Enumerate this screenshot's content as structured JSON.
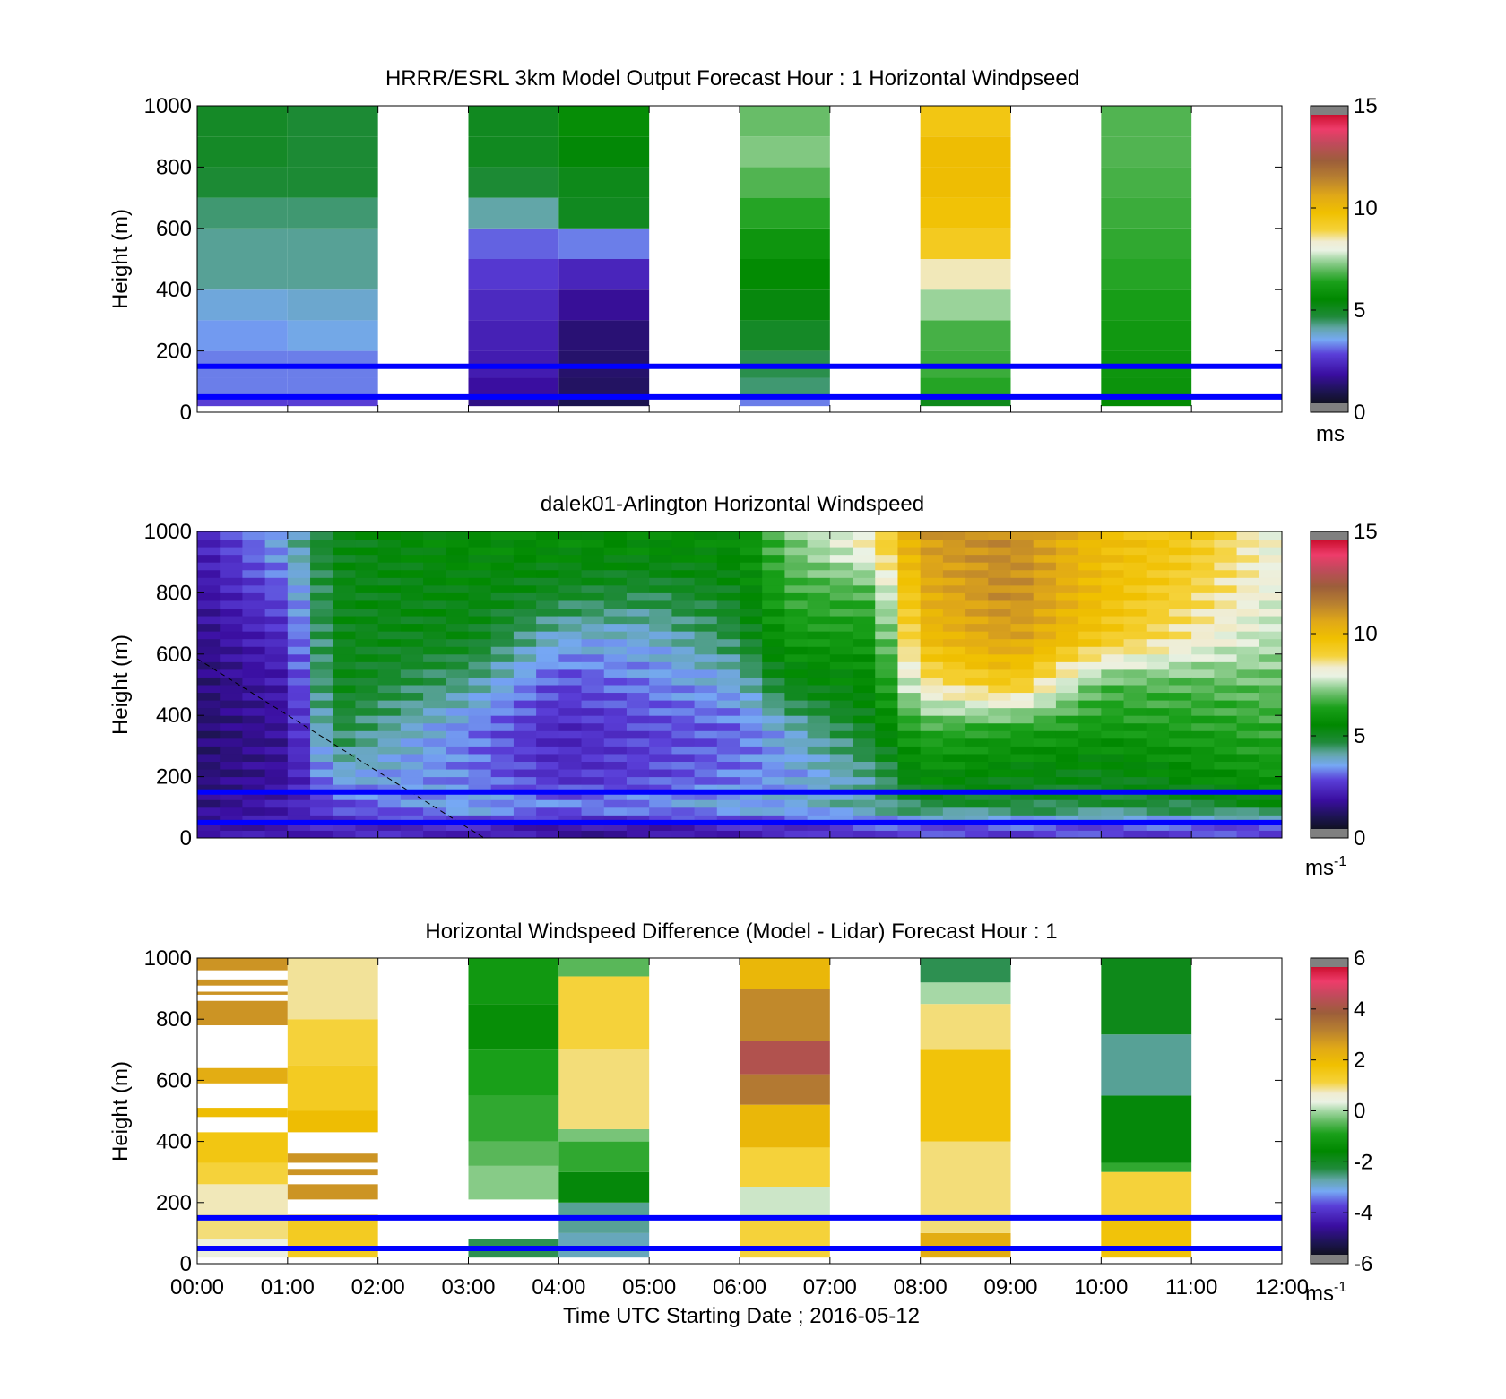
{
  "figure": {
    "xlabel": "Time UTC  Starting Date ; 2016-05-12",
    "x_tick_labels": [
      "00:00",
      "01:00",
      "02:00",
      "03:00",
      "04:00",
      "05:00",
      "06:00",
      "07:00",
      "08:00",
      "09:00",
      "10:00",
      "11:00",
      "12:00"
    ],
    "reference_line_color": "#0000ff",
    "reference_heights_m": [
      50,
      150
    ]
  },
  "chart_data": [
    {
      "type": "heatmap",
      "title": "HRRR/ESRL 3km Model Output   Forecast Hour : 1 Horizontal Windpseed",
      "xlabel": "",
      "ylabel": "Height (m)",
      "xlim": [
        0,
        12
      ],
      "ylim": [
        0,
        1000
      ],
      "y_ticks": [
        0,
        200,
        400,
        600,
        800,
        1000
      ],
      "colorbar": {
        "range": [
          0,
          15
        ],
        "ticks": [
          0,
          5,
          10,
          15
        ],
        "unit": "ms"
      },
      "columns": [
        {
          "t0": 0,
          "t1": 1,
          "levels": [
            [
              25,
              2.5
            ],
            [
              75,
              3.0
            ],
            [
              150,
              3.0
            ],
            [
              250,
              3.2
            ],
            [
              350,
              3.5
            ],
            [
              450,
              4.0
            ],
            [
              550,
              4.0
            ],
            [
              650,
              4.2
            ],
            [
              750,
              4.6
            ],
            [
              850,
              4.8
            ],
            [
              950,
              4.8
            ]
          ]
        },
        {
          "t0": 1,
          "t1": 2,
          "levels": [
            [
              25,
              2.5
            ],
            [
              75,
              3.0
            ],
            [
              150,
              3.0
            ],
            [
              250,
              3.4
            ],
            [
              350,
              3.6
            ],
            [
              450,
              4.0
            ],
            [
              550,
              4.0
            ],
            [
              650,
              4.2
            ],
            [
              750,
              4.6
            ],
            [
              850,
              4.6
            ],
            [
              950,
              4.6
            ]
          ]
        },
        {
          "t0": 3,
          "t1": 4,
          "levels": [
            [
              25,
              1.2
            ],
            [
              75,
              1.5
            ],
            [
              150,
              1.8
            ],
            [
              250,
              1.9
            ],
            [
              350,
              2.1
            ],
            [
              450,
              2.4
            ],
            [
              550,
              2.8
            ],
            [
              650,
              3.9
            ],
            [
              750,
              4.6
            ],
            [
              850,
              4.9
            ],
            [
              950,
              4.9
            ]
          ]
        },
        {
          "t0": 4,
          "t1": 5,
          "levels": [
            [
              25,
              0.6
            ],
            [
              75,
              0.8
            ],
            [
              150,
              0.9
            ],
            [
              250,
              1.0
            ],
            [
              350,
              1.4
            ],
            [
              450,
              2.0
            ],
            [
              550,
              3.0
            ],
            [
              650,
              4.9
            ],
            [
              750,
              5.0
            ],
            [
              850,
              5.3
            ],
            [
              950,
              5.6
            ]
          ]
        },
        {
          "t0": 6,
          "t1": 7,
          "levels": [
            [
              25,
              3.0
            ],
            [
              75,
              4.2
            ],
            [
              150,
              4.4
            ],
            [
              250,
              4.8
            ],
            [
              350,
              5.2
            ],
            [
              450,
              5.5
            ],
            [
              550,
              5.9
            ],
            [
              650,
              6.4
            ],
            [
              750,
              6.8
            ],
            [
              850,
              7.2
            ],
            [
              950,
              7.0
            ]
          ]
        },
        {
          "t0": 8,
          "t1": 9,
          "levels": [
            [
              25,
              5.0
            ],
            [
              75,
              6.4
            ],
            [
              150,
              6.6
            ],
            [
              250,
              6.7
            ],
            [
              350,
              7.4
            ],
            [
              450,
              8.5
            ],
            [
              550,
              9.4
            ],
            [
              650,
              9.8
            ],
            [
              750,
              10.0
            ],
            [
              850,
              10.0
            ],
            [
              950,
              9.6
            ]
          ]
        },
        {
          "t0": 10,
          "t1": 11,
          "levels": [
            [
              25,
              5.5
            ],
            [
              75,
              5.8
            ],
            [
              150,
              5.9
            ],
            [
              250,
              6.0
            ],
            [
              350,
              6.2
            ],
            [
              450,
              6.4
            ],
            [
              550,
              6.5
            ],
            [
              650,
              6.6
            ],
            [
              750,
              6.7
            ],
            [
              850,
              6.8
            ],
            [
              950,
              6.8
            ]
          ]
        }
      ]
    },
    {
      "type": "heatmap",
      "title": "dalek01-Arlington  Horizontal Windspeed",
      "xlabel": "",
      "ylabel": "Height (m)",
      "xlim": [
        0,
        12
      ],
      "ylim": [
        0,
        1000
      ],
      "y_ticks": [
        0,
        200,
        400,
        600,
        800,
        1000
      ],
      "colorbar": {
        "range": [
          0,
          15
        ],
        "ticks": [
          0,
          5,
          10,
          15
        ],
        "unit": "ms-1"
      },
      "profile_anchors": [
        {
          "t": 0.0,
          "v": [
            1.5,
            1.2,
            1.0,
            0.9,
            1.0,
            1.2,
            1.5,
            1.8
          ]
        },
        {
          "t": 1.0,
          "v": [
            1.8,
            1.8,
            1.5,
            1.5,
            1.8,
            2.2,
            2.8,
            3.5
          ]
        },
        {
          "t": 1.5,
          "v": [
            2.0,
            2.5,
            3.5,
            4.5,
            5.0,
            5.0,
            5.0,
            5.0
          ]
        },
        {
          "t": 3.0,
          "v": [
            2.0,
            3.5,
            3.0,
            3.0,
            4.0,
            5.0,
            5.2,
            5.5
          ]
        },
        {
          "t": 4.0,
          "v": [
            1.5,
            3.0,
            2.2,
            2.0,
            2.5,
            3.5,
            4.8,
            5.5
          ]
        },
        {
          "t": 5.0,
          "v": [
            1.5,
            3.2,
            2.5,
            2.5,
            3.0,
            3.5,
            4.5,
            5.5
          ]
        },
        {
          "t": 6.0,
          "v": [
            2.0,
            3.5,
            3.0,
            2.8,
            3.5,
            4.5,
            5.0,
            5.5
          ]
        },
        {
          "t": 6.5,
          "v": [
            2.0,
            3.5,
            3.2,
            3.5,
            5.0,
            6.0,
            6.5,
            7.0
          ]
        },
        {
          "t": 7.5,
          "v": [
            2.5,
            4.0,
            4.0,
            5.0,
            5.5,
            6.0,
            6.8,
            8.5
          ]
        },
        {
          "t": 8.0,
          "v": [
            2.5,
            4.5,
            5.5,
            6.5,
            8.5,
            10.0,
            10.5,
            11.0
          ]
        },
        {
          "t": 9.0,
          "v": [
            2.5,
            4.5,
            5.2,
            6.2,
            9.5,
            11.0,
            11.5,
            11.5
          ]
        },
        {
          "t": 10.0,
          "v": [
            2.5,
            4.5,
            5.0,
            6.0,
            6.8,
            9.5,
            10.0,
            10.0
          ]
        },
        {
          "t": 11.0,
          "v": [
            2.5,
            4.5,
            5.5,
            6.2,
            6.8,
            8.5,
            9.0,
            9.5
          ]
        },
        {
          "t": 12.0,
          "v": [
            2.5,
            5.0,
            6.0,
            6.5,
            7.0,
            7.5,
            8.0,
            8.0
          ]
        }
      ],
      "profile_heights_m": [
        30,
        100,
        200,
        350,
        500,
        650,
        800,
        950
      ]
    },
    {
      "type": "heatmap",
      "title": "Horizontal Windspeed Difference (Model - Lidar) Forecast Hour : 1",
      "xlabel": "Time UTC  Starting Date ; 2016-05-12",
      "ylabel": "Height (m)",
      "xlim": [
        0,
        12
      ],
      "ylim": [
        0,
        1000
      ],
      "y_ticks": [
        0,
        200,
        400,
        600,
        800,
        1000
      ],
      "colorbar": {
        "range": [
          -6,
          6
        ],
        "ticks": [
          -6,
          -4,
          -2,
          0,
          2,
          4,
          6
        ],
        "unit": "ms-1"
      },
      "columns": [
        {
          "t0": 0,
          "t1": 1,
          "segments": [
            [
              20,
              80,
              0.5
            ],
            [
              80,
              160,
              1.0
            ],
            [
              160,
              260,
              0.8
            ],
            [
              260,
              330,
              1.2
            ],
            [
              330,
              430,
              1.7
            ],
            [
              480,
              510,
              2.0
            ],
            [
              590,
              640,
              2.5
            ],
            [
              780,
              860,
              3.0
            ],
            [
              880,
              890,
              3.0
            ],
            [
              910,
              930,
              3.0
            ],
            [
              960,
              1000,
              3.0
            ]
          ]
        },
        {
          "t0": 1,
          "t1": 2,
          "segments": [
            [
              20,
              160,
              1.5
            ],
            [
              210,
              260,
              3.0
            ],
            [
              290,
              310,
              3.0
            ],
            [
              330,
              360,
              3.0
            ],
            [
              430,
              500,
              2.0
            ],
            [
              500,
              650,
              1.5
            ],
            [
              650,
              800,
              1.2
            ],
            [
              800,
              1000,
              0.9
            ]
          ]
        },
        {
          "t0": 3,
          "t1": 4,
          "segments": [
            [
              20,
              80,
              -2.5
            ],
            [
              210,
              320,
              -0.2
            ],
            [
              320,
              400,
              -0.5
            ],
            [
              400,
              550,
              -0.8
            ],
            [
              550,
              700,
              -1.0
            ],
            [
              700,
              850,
              -1.5
            ],
            [
              850,
              1000,
              -1.2
            ]
          ]
        },
        {
          "t0": 4,
          "t1": 5,
          "segments": [
            [
              20,
              100,
              -3.0
            ],
            [
              100,
              200,
              -2.8
            ],
            [
              200,
              300,
              -1.8
            ],
            [
              300,
              400,
              -0.8
            ],
            [
              400,
              440,
              -0.3
            ],
            [
              440,
              700,
              1.0
            ],
            [
              700,
              940,
              1.2
            ],
            [
              940,
              1000,
              -0.5
            ]
          ]
        },
        {
          "t0": 6,
          "t1": 7,
          "segments": [
            [
              20,
              150,
              1.2
            ],
            [
              150,
              250,
              0.2
            ],
            [
              250,
              380,
              1.2
            ],
            [
              380,
              520,
              2.2
            ],
            [
              520,
              620,
              3.5
            ],
            [
              620,
              730,
              4.5
            ],
            [
              730,
              900,
              3.2
            ],
            [
              900,
              1000,
              2.2
            ]
          ]
        },
        {
          "t0": 8,
          "t1": 9,
          "segments": [
            [
              20,
              100,
              2.5
            ],
            [
              100,
              400,
              1.0
            ],
            [
              400,
              700,
              1.8
            ],
            [
              700,
              850,
              1.0
            ],
            [
              850,
              920,
              0.0
            ],
            [
              920,
              1000,
              -2.5
            ]
          ]
        },
        {
          "t0": 10,
          "t1": 11,
          "segments": [
            [
              20,
              150,
              1.8
            ],
            [
              150,
              300,
              1.2
            ],
            [
              300,
              330,
              -0.8
            ],
            [
              330,
              550,
              -1.8
            ],
            [
              550,
              750,
              -2.8
            ],
            [
              750,
              1000,
              -2.0
            ]
          ]
        }
      ]
    }
  ]
}
